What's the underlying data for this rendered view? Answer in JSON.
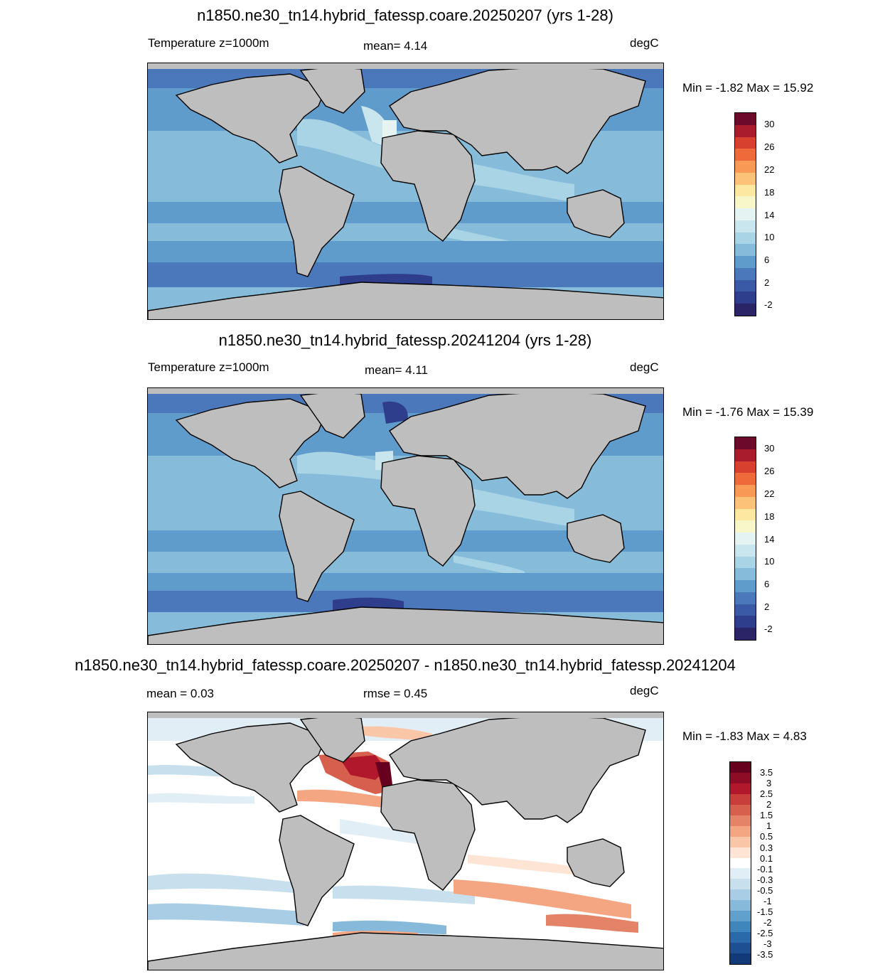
{
  "panels": [
    {
      "title": "n1850.ne30_tn14.hybrid_fatessp.coare.20250207 (yrs 1-28)",
      "left_label": "Temperature z=1000m",
      "center_label": "mean=   4.14",
      "units": "degC",
      "minmax": "Min =  -1.82 Max =  15.92",
      "colorbar": {
        "colors": [
          "#6b0a2a",
          "#a81c2e",
          "#d7402f",
          "#ef6a3a",
          "#f89a55",
          "#fdc27a",
          "#fde8a1",
          "#f8f7c9",
          "#e5f3f3",
          "#c9e6ee",
          "#a9d4e6",
          "#86bcd9",
          "#5f9bcb",
          "#4a78bb",
          "#3a5aa6",
          "#2f3e8c",
          "#2b2466"
        ],
        "tick_labels": [
          "30",
          "26",
          "22",
          "18",
          "14",
          "10",
          "6",
          "2",
          "-2"
        ]
      }
    },
    {
      "title": "n1850.ne30_tn14.hybrid_fatessp.20241204 (yrs 1-28)",
      "left_label": "Temperature z=1000m",
      "center_label": "mean=   4.11",
      "units": "degC",
      "minmax": "Min =  -1.76 Max =  15.39",
      "colorbar": {
        "colors": [
          "#6b0a2a",
          "#a81c2e",
          "#d7402f",
          "#ef6a3a",
          "#f89a55",
          "#fdc27a",
          "#fde8a1",
          "#f8f7c9",
          "#e5f3f3",
          "#c9e6ee",
          "#a9d4e6",
          "#86bcd9",
          "#5f9bcb",
          "#4a78bb",
          "#3a5aa6",
          "#2f3e8c",
          "#2b2466"
        ],
        "tick_labels": [
          "30",
          "26",
          "22",
          "18",
          "14",
          "10",
          "6",
          "2",
          "-2"
        ]
      }
    },
    {
      "title": "n1850.ne30_tn14.hybrid_fatessp.coare.20250207 - n1850.ne30_tn14.hybrid_fatessp.20241204",
      "left_label": "mean =   0.03",
      "center_label": "rmse =   0.45",
      "units": "degC",
      "minmax": "Min =  -1.83 Max =   4.83",
      "colorbar": {
        "colors": [
          "#67001f",
          "#8e0c25",
          "#b2182b",
          "#c83e3a",
          "#d6604d",
          "#e58368",
          "#f4a582",
          "#f9c6a8",
          "#fde4d4",
          "#ffffff",
          "#e2eef6",
          "#c8dfee",
          "#a8cde4",
          "#86b9da",
          "#5fa0cd",
          "#3f86bd",
          "#2a6aab",
          "#1e4f93",
          "#123a78"
        ],
        "tick_labels": [
          "3.5",
          "3",
          "2.5",
          "2",
          "1.5",
          "1",
          "0.5",
          "0.3",
          "0.1",
          "-0.1",
          "-0.3",
          "-0.5",
          "-1",
          "-1.5",
          "-2",
          "-2.5",
          "-3",
          "-3.5"
        ]
      }
    }
  ],
  "colors": {
    "land": "#bebebe",
    "background": "#ffffff",
    "coastline": "#000000"
  }
}
